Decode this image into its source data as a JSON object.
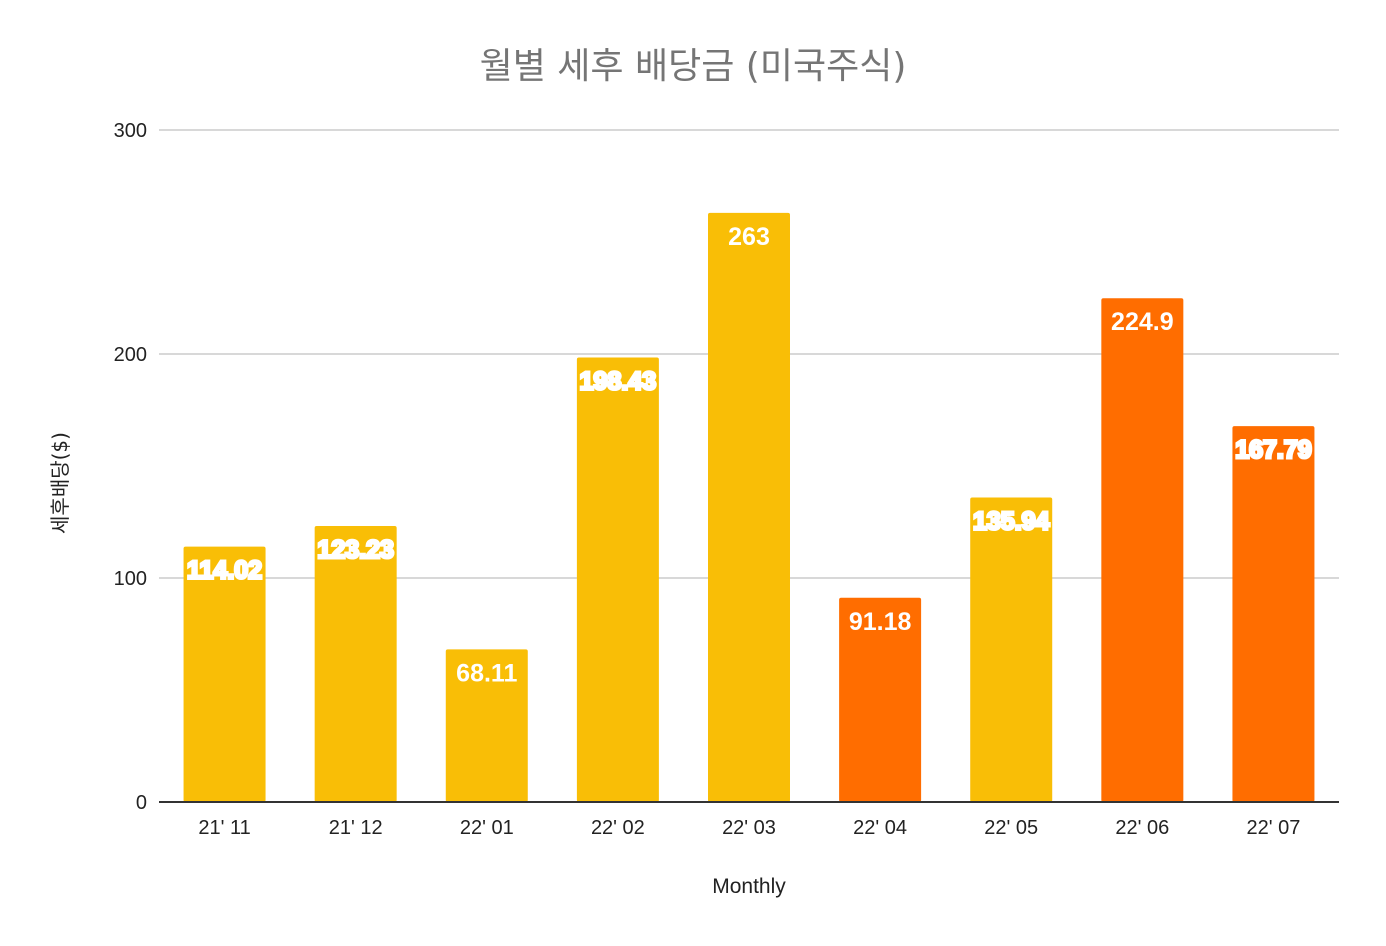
{
  "chart_data": {
    "type": "bar",
    "title": "월별 세후 배당금 (미국주식)",
    "xlabel": "Monthly",
    "ylabel": "세후배당($)",
    "categories": [
      "21' 11",
      "21' 12",
      "22' 01",
      "22' 02",
      "22' 03",
      "22' 04",
      "22' 05",
      "22' 06",
      "22' 07"
    ],
    "values": [
      114.02,
      123.23,
      68.11,
      198.43,
      263,
      91.18,
      135.94,
      224.9,
      167.79
    ],
    "data_labels": [
      "114.02",
      "123.23",
      "68.11",
      "198.43",
      "263",
      "91.18",
      "135.94",
      "224.9",
      "167.79"
    ],
    "bar_colors": [
      "#F9BE06",
      "#F9BE06",
      "#F9BE06",
      "#F9BE06",
      "#F9BE06",
      "#FF6D00",
      "#F9BE06",
      "#FF6D00",
      "#FF6D00"
    ],
    "ylim": [
      0,
      300
    ],
    "yticks": [
      0,
      100,
      200,
      300
    ],
    "grid": true,
    "legend": "none"
  }
}
